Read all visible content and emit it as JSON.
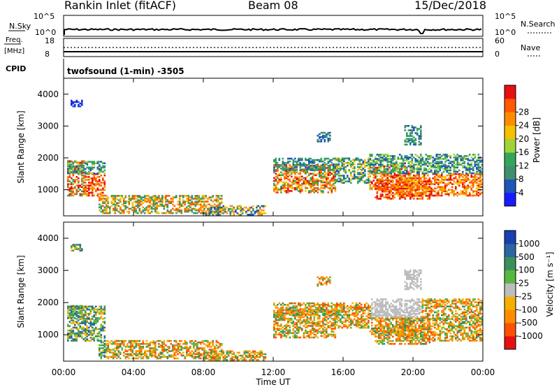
{
  "header": {
    "title": "Rankin Inlet (fitACF)",
    "beam": "Beam 08",
    "date": "15/Dec/2018"
  },
  "status_panel": {
    "nsky_label": "N.Sky",
    "nsearch_label": "N.Search",
    "nsky_ticks": [
      "10^5",
      "10^0"
    ],
    "nsearch_ticks": [
      "10^5",
      "10^0"
    ],
    "freq_label": "Freq.",
    "freq_unit": "[MHz]",
    "freq_ticks": [
      "18",
      "8"
    ],
    "nave_label": "Nave",
    "nave_ticks": [
      "60",
      "0"
    ],
    "cpid_label": "CPID",
    "cpid_text": "twofsound (1-min) -3505"
  },
  "chart_data": [
    {
      "type": "heatmap",
      "name": "power",
      "xlabel": "",
      "ylabel": "Slant Range [km]",
      "x_ticks": [
        "00:00",
        "04:00",
        "08:00",
        "12:00",
        "16:00",
        "20:00",
        "00:00"
      ],
      "y_ticks": [
        "1000",
        "2000",
        "3000",
        "4000"
      ],
      "ylim": [
        180,
        4500
      ],
      "colorbar_label": "Power [dB]",
      "colorbar_ticks": [
        "4",
        "8",
        "12",
        "16",
        "20",
        "24",
        "28"
      ],
      "colorbar_colors": [
        "#1a1aff",
        "#1f55b8",
        "#3f8f6e",
        "#33a65a",
        "#9ed43a",
        "#f5c000",
        "#ff8c00",
        "#ff5a00",
        "#e61010"
      ]
    },
    {
      "type": "heatmap",
      "name": "velocity",
      "xlabel": "Time UT",
      "ylabel": "Slant Range [km]",
      "x_ticks": [
        "00:00",
        "04:00",
        "08:00",
        "12:00",
        "16:00",
        "20:00",
        "00:00"
      ],
      "y_ticks": [
        "1000",
        "2000",
        "3000",
        "4000"
      ],
      "ylim": [
        180,
        4500
      ],
      "colorbar_label": "Velocity [m s⁻¹]",
      "colorbar_ticks": [
        "1000",
        "500",
        "100",
        "25",
        "-25",
        "-100",
        "-500",
        "-1000"
      ],
      "colorbar_colors": [
        "#1a3fb0",
        "#2a66a0",
        "#3d8f5a",
        "#55b840",
        "#bdbdbd",
        "#f5b000",
        "#ff8c00",
        "#ff5000",
        "#e61010"
      ]
    }
  ]
}
